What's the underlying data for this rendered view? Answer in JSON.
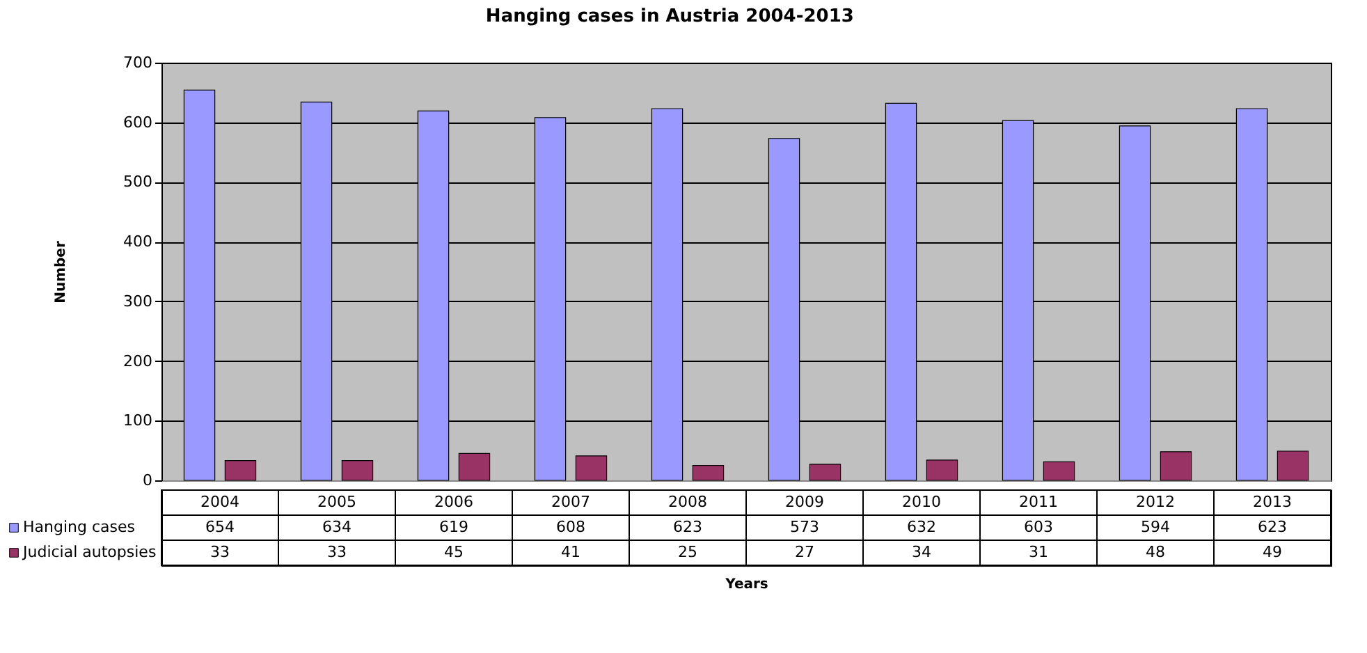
{
  "chart_data": {
    "type": "bar",
    "title": "Hanging cases in Austria 2004-2013",
    "xlabel": "Years",
    "ylabel": "Number",
    "categories": [
      "2004",
      "2005",
      "2006",
      "2007",
      "2008",
      "2009",
      "2010",
      "2011",
      "2012",
      "2013"
    ],
    "series": [
      {
        "name": "Hanging cases",
        "color": "#9999ff",
        "values": [
          654,
          634,
          619,
          608,
          623,
          573,
          632,
          603,
          594,
          623
        ]
      },
      {
        "name": "Judicial autopsies",
        "color": "#993366",
        "values": [
          33,
          33,
          45,
          41,
          25,
          27,
          34,
          31,
          48,
          49
        ]
      }
    ],
    "ylim": [
      0,
      700
    ],
    "yticks": [
      0,
      100,
      200,
      300,
      400,
      500,
      600,
      700
    ],
    "grid": "y",
    "legend": "bottom left",
    "data_labels": true
  }
}
